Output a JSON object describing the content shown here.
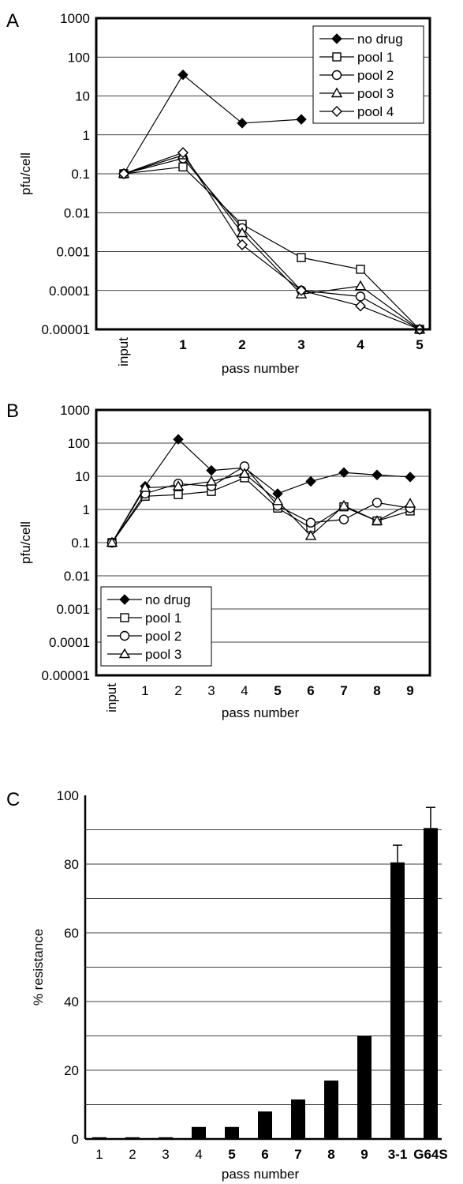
{
  "chart_data": [
    {
      "panel": "A",
      "type": "line",
      "ylabel": "pfu/cell",
      "xlabel": "pass number",
      "y_scale": "log",
      "ylim": [
        1e-05,
        1000
      ],
      "y_ticks": [
        "1000",
        "100",
        "10",
        "1",
        "0.1",
        "0.01",
        "0.001",
        "0.0001",
        "0.00001"
      ],
      "x_ticks": [
        "input",
        "1",
        "2",
        "3",
        "4",
        "5"
      ],
      "bold_x_ticks": [
        "1",
        "2",
        "3",
        "4",
        "5"
      ],
      "legend_position": "top-right",
      "grid": "horizontal",
      "series": [
        {
          "name": "no drug",
          "marker": "diamond-filled",
          "points": [
            [
              "input",
              0.1
            ],
            [
              "1",
              35
            ],
            [
              "2",
              2
            ],
            [
              "3",
              2.5
            ]
          ]
        },
        {
          "name": "pool 1",
          "marker": "square-open",
          "points": [
            [
              "input",
              0.1
            ],
            [
              "1",
              0.15
            ],
            [
              "2",
              0.005
            ],
            [
              "3",
              0.0007
            ],
            [
              "4",
              0.00035
            ],
            [
              "5",
              1e-05
            ]
          ]
        },
        {
          "name": "pool 2",
          "marker": "circle-open",
          "points": [
            [
              "input",
              0.1
            ],
            [
              "1",
              0.25
            ],
            [
              "2",
              0.004
            ],
            [
              "3",
              0.0001
            ],
            [
              "4",
              7e-05
            ],
            [
              "5",
              1e-05
            ]
          ]
        },
        {
          "name": "pool 3",
          "marker": "triangle-open",
          "points": [
            [
              "input",
              0.1
            ],
            [
              "1",
              0.3
            ],
            [
              "2",
              0.003
            ],
            [
              "3",
              8e-05
            ],
            [
              "4",
              0.00013
            ],
            [
              "5",
              1e-05
            ]
          ]
        },
        {
          "name": "pool 4",
          "marker": "diamond-open",
          "points": [
            [
              "input",
              0.1
            ],
            [
              "1",
              0.35
            ],
            [
              "2",
              0.0015
            ],
            [
              "3",
              0.0001
            ],
            [
              "4",
              4e-05
            ],
            [
              "5",
              1e-05
            ]
          ]
        }
      ]
    },
    {
      "panel": "B",
      "type": "line",
      "ylabel": "pfu/cell",
      "xlabel": "pass number",
      "y_scale": "log",
      "ylim": [
        1e-05,
        1000
      ],
      "y_ticks": [
        "1000",
        "100",
        "10",
        "1",
        "0.1",
        "0.01",
        "0.001",
        "0.0001",
        "0.00001"
      ],
      "x_ticks": [
        "input",
        "1",
        "2",
        "3",
        "4",
        "5",
        "6",
        "7",
        "8",
        "9"
      ],
      "bold_x_ticks": [
        "5",
        "6",
        "7",
        "8",
        "9"
      ],
      "legend_position": "bottom-left",
      "grid": "horizontal",
      "series": [
        {
          "name": "no drug",
          "marker": "diamond-filled",
          "points": [
            [
              "input",
              0.1
            ],
            [
              "1",
              5
            ],
            [
              "2",
              130
            ],
            [
              "3",
              15
            ],
            [
              "4",
              18
            ],
            [
              "5",
              3
            ],
            [
              "6",
              7
            ],
            [
              "7",
              13
            ],
            [
              "8",
              11
            ],
            [
              "9",
              9.5
            ]
          ]
        },
        {
          "name": "pool 1",
          "marker": "square-open",
          "points": [
            [
              "input",
              0.1
            ],
            [
              "1",
              2.5
            ],
            [
              "2",
              2.8
            ],
            [
              "3",
              3.5
            ],
            [
              "4",
              9
            ],
            [
              "5",
              1.1
            ],
            [
              "6",
              0.28
            ],
            [
              "7",
              1.2
            ],
            [
              "8",
              0.45
            ],
            [
              "9",
              0.9
            ]
          ]
        },
        {
          "name": "pool 2",
          "marker": "circle-open",
          "points": [
            [
              "input",
              0.1
            ],
            [
              "1",
              3
            ],
            [
              "2",
              6
            ],
            [
              "3",
              5
            ],
            [
              "4",
              20
            ],
            [
              "5",
              1.3
            ],
            [
              "6",
              0.4
            ],
            [
              "7",
              0.5
            ],
            [
              "8",
              1.6
            ],
            [
              "9",
              1.1
            ]
          ]
        },
        {
          "name": "pool 3",
          "marker": "triangle-open",
          "points": [
            [
              "input",
              0.1
            ],
            [
              "1",
              4.5
            ],
            [
              "2",
              5
            ],
            [
              "3",
              7
            ],
            [
              "4",
              12
            ],
            [
              "5",
              1.8
            ],
            [
              "6",
              0.16
            ],
            [
              "7",
              1.3
            ],
            [
              "8",
              0.45
            ],
            [
              "9",
              1.5
            ]
          ]
        }
      ]
    },
    {
      "panel": "C",
      "type": "bar",
      "ylabel": "% resistance",
      "xlabel": "pass number",
      "ylim": [
        0,
        100
      ],
      "y_ticks": [
        "0",
        "20",
        "40",
        "60",
        "80",
        "100"
      ],
      "categories": [
        "1",
        "2",
        "3",
        "4",
        "5",
        "6",
        "7",
        "8",
        "9",
        "3-1",
        "G64S"
      ],
      "bold_categories": [
        "5",
        "6",
        "7",
        "8",
        "9",
        "3-1",
        "G64S"
      ],
      "values": [
        0.5,
        0.5,
        0.5,
        3.5,
        3.5,
        8,
        11.5,
        17,
        30,
        80.5,
        90.5
      ],
      "errors": [
        0,
        0,
        0,
        0,
        0,
        0,
        0,
        0,
        0,
        5,
        6
      ],
      "grid": "horizontal",
      "bar_color": "#000000"
    }
  ],
  "panel_labels": [
    "A",
    "B",
    "C"
  ]
}
